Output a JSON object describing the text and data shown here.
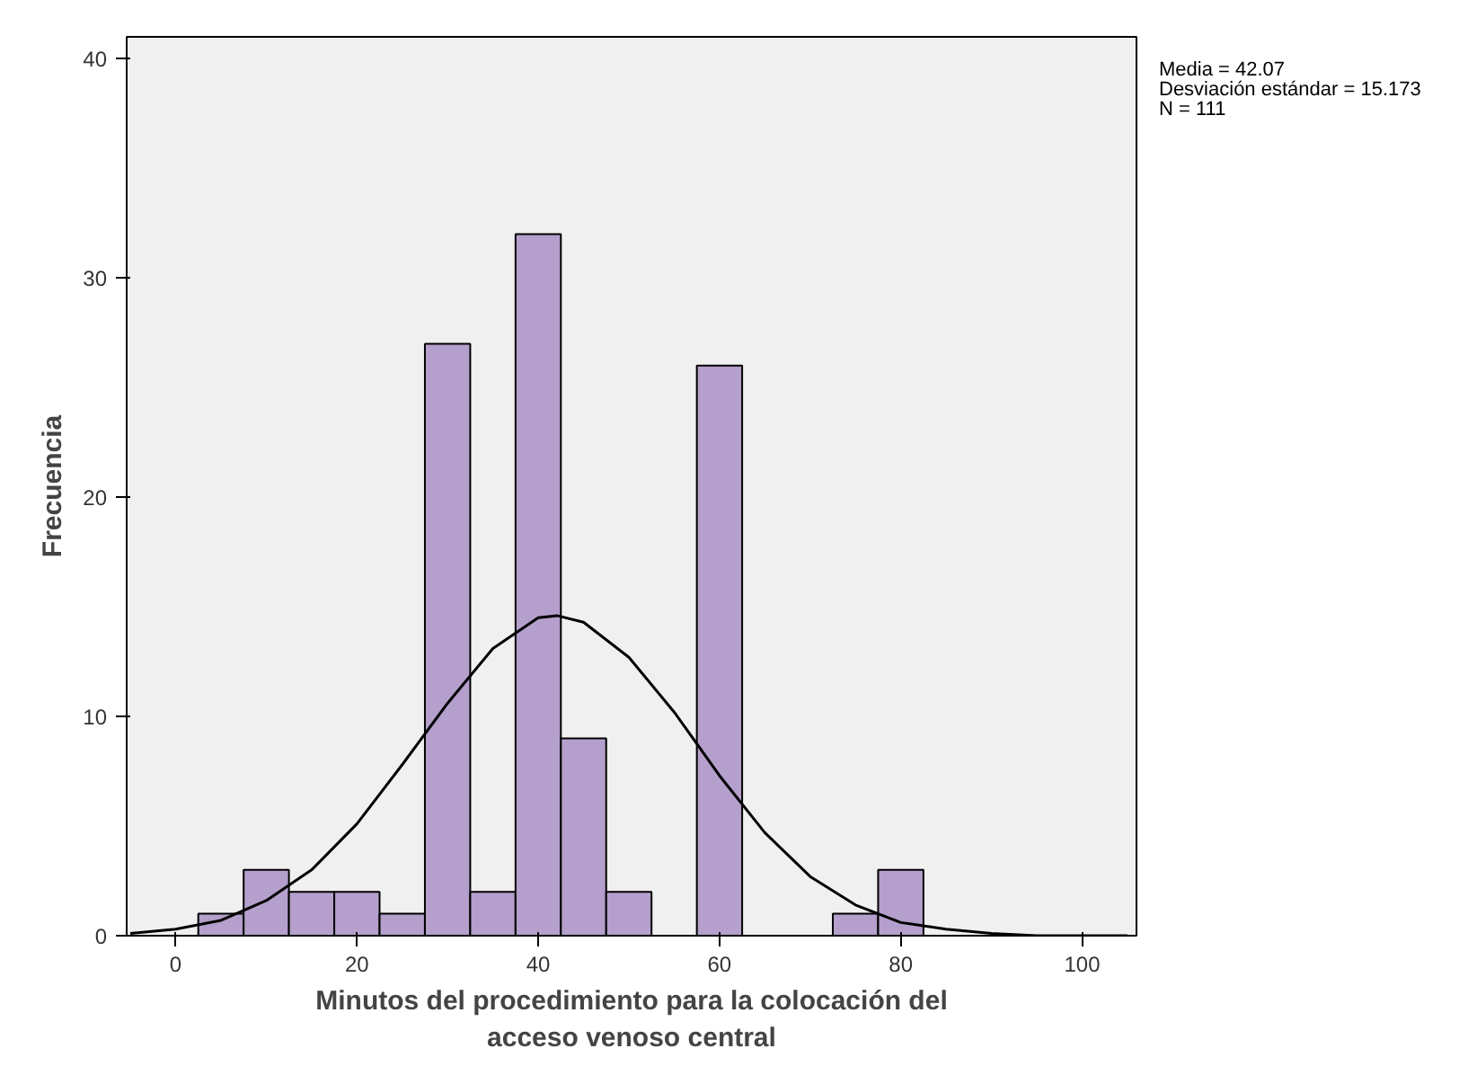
{
  "chart_data": {
    "type": "histogram",
    "xlabel": "Minutos del procedimiento para la colocación del\nacceso venoso central",
    "ylabel": "Frecuencia",
    "bins": [
      2.5,
      7.5,
      12.5,
      17.5,
      22.5,
      27.5,
      32.5,
      37.5,
      42.5,
      47.5,
      52.5,
      57.5,
      62.5,
      67.5,
      72.5,
      77.5,
      82.5
    ],
    "values": [
      1,
      3,
      2,
      2,
      1,
      27,
      2,
      32,
      9,
      2,
      0,
      26,
      0,
      0,
      1,
      3
    ],
    "color": "#b59fcc",
    "series": [
      {
        "type": "line",
        "color": "#000000",
        "x": [
          -5,
          0,
          5,
          10,
          15,
          20,
          25,
          30,
          35,
          40,
          42.07,
          45,
          50,
          55,
          60,
          65,
          70,
          75,
          80,
          85,
          90,
          95,
          100,
          105
        ],
        "values": [
          0.1,
          0.3,
          0.7,
          1.6,
          3.0,
          5.1,
          7.8,
          10.6,
          13.1,
          14.5,
          14.6,
          14.3,
          12.7,
          10.2,
          7.3,
          4.7,
          2.7,
          1.4,
          0.6,
          0.3,
          0.1,
          0.0,
          0.0,
          0.0
        ]
      }
    ],
    "xlim": [
      -5.4,
      106
    ],
    "ylim": [
      0,
      41
    ],
    "xticks": [
      0,
      20,
      40,
      60,
      80,
      100
    ],
    "yticks": [
      0,
      10,
      20,
      30,
      40
    ],
    "grid": false,
    "annotations": [
      "Media = 42.07",
      "Desviación estándar = 15.173",
      "N = 111"
    ]
  }
}
